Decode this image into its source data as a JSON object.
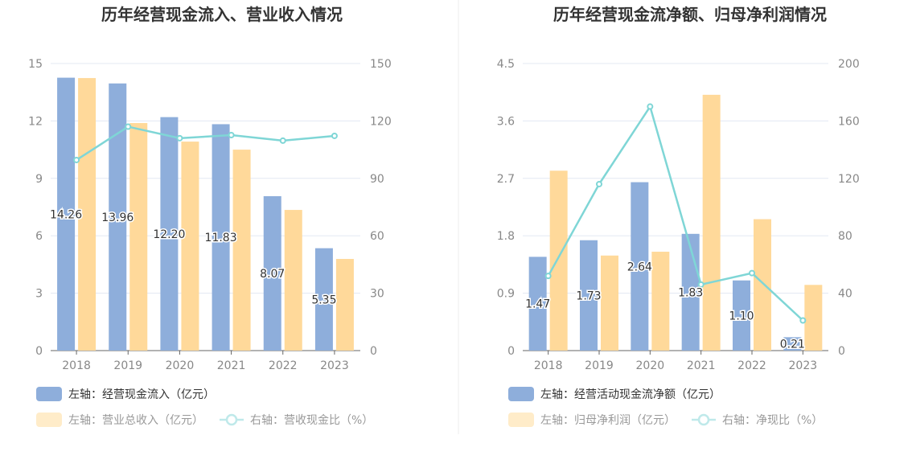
{
  "colors": {
    "blue": "#8eaedb",
    "yellow": "#ffd99a",
    "line": "#7fd6d6",
    "grid": "#e3e8f3",
    "axis": "#666"
  },
  "chart_data": [
    {
      "type": "bar",
      "title": "历年经营现金流入、营业收入情况",
      "categories": [
        "2018",
        "2019",
        "2020",
        "2021",
        "2022",
        "2023"
      ],
      "yleft": {
        "ticks": [
          "0",
          "3",
          "6",
          "9",
          "12",
          "15"
        ],
        "ylim": [
          0,
          15
        ]
      },
      "yright": {
        "ticks": [
          "0",
          "30",
          "60",
          "90",
          "120",
          "150"
        ],
        "ylim": [
          0,
          150
        ]
      },
      "series": [
        {
          "name": "左轴：经营现金流入（亿元）",
          "kind": "bar",
          "axis": "left",
          "values": [
            14.26,
            13.96,
            12.2,
            11.83,
            8.07,
            5.35
          ],
          "labels": [
            "14.26",
            "13.96",
            "12.20",
            "11.83",
            "8.07",
            "5.35"
          ]
        },
        {
          "name": "左轴：营业总收入（亿元）",
          "kind": "bar",
          "axis": "left",
          "values": [
            14.24,
            11.89,
            10.92,
            10.5,
            7.35,
            4.79
          ]
        },
        {
          "name": "右轴：营收现金比（%）",
          "kind": "line",
          "axis": "right",
          "values": [
            99.6,
            117,
            111,
            112.6,
            109.7,
            112.2
          ]
        }
      ],
      "legend": "bottom-left"
    },
    {
      "type": "bar",
      "title": "历年经营现金流净额、归母净利润情况",
      "categories": [
        "2018",
        "2019",
        "2020",
        "2021",
        "2022",
        "2023"
      ],
      "yleft": {
        "ticks": [
          "0",
          "0.9",
          "1.8",
          "2.7",
          "3.6",
          "4.5"
        ],
        "ylim": [
          0,
          4.5
        ]
      },
      "yright": {
        "ticks": [
          "0",
          "40",
          "80",
          "120",
          "160",
          "200"
        ],
        "ylim": [
          0,
          200
        ]
      },
      "series": [
        {
          "name": "左轴：经营活动现金流净额（亿元）",
          "kind": "bar",
          "axis": "left",
          "values": [
            1.47,
            1.73,
            2.64,
            1.83,
            1.1,
            0.21
          ],
          "labels": [
            "1.47",
            "1.73",
            "2.64",
            "1.83",
            "1.10",
            "0.21"
          ]
        },
        {
          "name": "左轴：归母净利润（亿元）",
          "kind": "bar",
          "axis": "left",
          "values": [
            2.82,
            1.49,
            1.55,
            4.01,
            2.06,
            1.03
          ]
        },
        {
          "name": "右轴：净现比（%）",
          "kind": "line",
          "axis": "right",
          "values": [
            52,
            116,
            170,
            46,
            54,
            21
          ]
        }
      ],
      "legend": "bottom-left"
    }
  ]
}
